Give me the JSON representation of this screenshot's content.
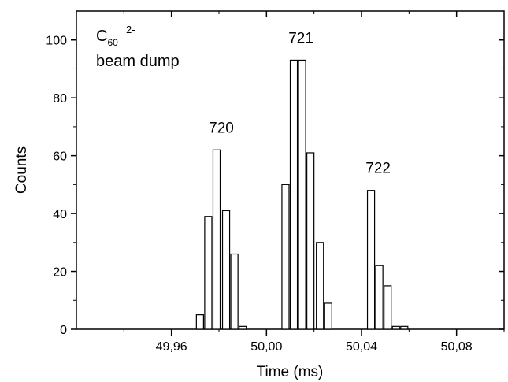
{
  "chart_data": {
    "type": "bar",
    "xlabel": "Time (ms)",
    "ylabel": "Counts",
    "xlim": [
      49.92,
      50.1
    ],
    "ylim": [
      0,
      110
    ],
    "xticks": [
      {
        "value": 49.96,
        "label": "49,96"
      },
      {
        "value": 50.0,
        "label": "50,00"
      },
      {
        "value": 50.04,
        "label": "50,04"
      },
      {
        "value": 50.08,
        "label": "50,08"
      }
    ],
    "yticks": [
      0,
      20,
      40,
      60,
      80,
      100
    ],
    "bar_width": 0.003,
    "bars": [
      {
        "x": 49.972,
        "value": 5
      },
      {
        "x": 49.9755,
        "value": 39
      },
      {
        "x": 49.979,
        "value": 62
      },
      {
        "x": 49.983,
        "value": 41
      },
      {
        "x": 49.9865,
        "value": 26
      },
      {
        "x": 49.99,
        "value": 1
      },
      {
        "x": 50.008,
        "value": 50
      },
      {
        "x": 50.0115,
        "value": 93
      },
      {
        "x": 50.015,
        "value": 93
      },
      {
        "x": 50.0185,
        "value": 61
      },
      {
        "x": 50.0225,
        "value": 30
      },
      {
        "x": 50.026,
        "value": 9
      },
      {
        "x": 50.044,
        "value": 48
      },
      {
        "x": 50.0475,
        "value": 22
      },
      {
        "x": 50.051,
        "value": 15
      },
      {
        "x": 50.0545,
        "value": 1
      },
      {
        "x": 50.058,
        "value": 1
      }
    ],
    "annotations": [
      {
        "text": "720",
        "x": 49.981,
        "y": 68
      },
      {
        "text": "721",
        "x": 50.0145,
        "y": 99
      },
      {
        "text": "722",
        "x": 50.047,
        "y": 54
      }
    ]
  },
  "label": {
    "species_base": "C",
    "species_sub": "60",
    "species_sup": "2-",
    "line2": "beam dump"
  }
}
